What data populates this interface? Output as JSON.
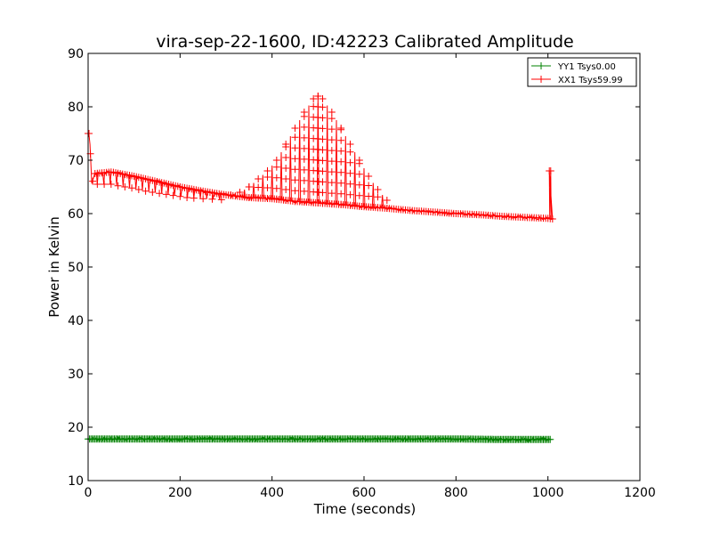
{
  "chart_data": {
    "type": "line",
    "title": "vira-sep-22-1600, ID:42223 Calibrated Amplitude",
    "xlabel": "Time (seconds)",
    "ylabel": "Power in Kelvin",
    "xlim": [
      0,
      1200
    ],
    "ylim": [
      10,
      90
    ],
    "xticks": [
      0,
      200,
      400,
      600,
      800,
      1000,
      1200
    ],
    "yticks": [
      10,
      20,
      30,
      40,
      50,
      60,
      70,
      80,
      90
    ],
    "grid": false,
    "legend_position": "top-right",
    "marker": "+",
    "series": [
      {
        "name": "YY1 Tsys0.00",
        "color": "#008000",
        "x": [
          0,
          100,
          200,
          300,
          400,
          500,
          600,
          700,
          800,
          900,
          1005
        ],
        "y": [
          17.8,
          17.8,
          17.8,
          17.8,
          17.8,
          17.8,
          17.8,
          17.8,
          17.8,
          17.7,
          17.7
        ],
        "spread": 0.6
      },
      {
        "name": "XX1 Tsys59.99",
        "color": "#ff0000",
        "baseline": {
          "x": [
            0,
            3,
            8,
            15,
            50,
            100,
            150,
            200,
            250,
            300,
            350,
            400,
            450,
            500,
            550,
            600,
            650,
            700,
            750,
            800,
            850,
            900,
            950,
            1000,
            1010
          ],
          "y": [
            75,
            75,
            65.5,
            67.5,
            67.8,
            67,
            66,
            65,
            64.2,
            63.5,
            63,
            62.8,
            62.3,
            62,
            61.7,
            61.3,
            61,
            60.6,
            60.3,
            60,
            59.8,
            59.5,
            59.3,
            59.1,
            59
          ]
        },
        "spikes": [
          [
            1003,
            68
          ],
          [
            1006,
            68
          ]
        ],
        "peaks": {
          "x": [
            310,
            330,
            350,
            370,
            390,
            410,
            430,
            450,
            470,
            490,
            500,
            510,
            530,
            550,
            570,
            590,
            610,
            630,
            650
          ],
          "y": [
            63.5,
            64,
            65,
            66.5,
            68,
            70,
            73,
            76,
            79,
            81.5,
            82,
            81.5,
            79,
            76,
            73,
            70,
            67,
            64.5,
            62.5
          ]
        },
        "dips": {
          "x": [
            20,
            35,
            50,
            65,
            80,
            95,
            110,
            125,
            140,
            155,
            170,
            185,
            200,
            215,
            230,
            250,
            270,
            290
          ],
          "y": [
            65.5,
            65.5,
            65.5,
            65.2,
            65,
            64.8,
            64.5,
            64.2,
            64,
            63.8,
            63.6,
            63.4,
            63.2,
            63,
            62.9,
            62.8,
            62.7,
            62.6
          ]
        }
      }
    ]
  }
}
